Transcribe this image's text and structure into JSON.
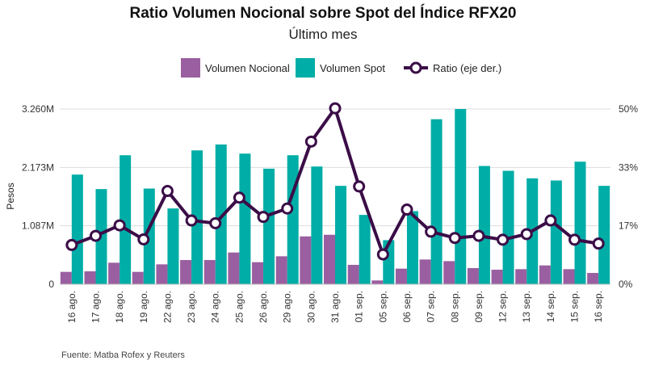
{
  "title": "Ratio Volumen Nocional sobre Spot del Índice RFX20",
  "subtitle": "Último mes",
  "source": "Fuente: Matba Rofex y Reuters",
  "colors": {
    "nocional": "#9a5fa0",
    "spot": "#00ada7",
    "ratio": "#3b0d47",
    "grid": "#dddddd"
  },
  "legend": {
    "nocional": "Volumen Nocional",
    "spot": "Volumen Spot",
    "ratio": "Ratio (eje der.)"
  },
  "chart_data": {
    "type": "bar",
    "title": "Ratio Volumen Nocional sobre Spot del Índice RFX20",
    "subtitle": "Último mes",
    "ylabel": "Pesos",
    "ylim": [
      0,
      3260
    ],
    "y_ticks": [
      "0",
      "1.087M",
      "2.173M",
      "3.260M"
    ],
    "y_tick_values": [
      0,
      1087,
      2173,
      3260
    ],
    "y2lim": [
      0,
      50
    ],
    "y2_ticks": [
      "0%",
      "17%",
      "33%",
      "50%"
    ],
    "y2_tick_values": [
      0,
      16.67,
      33.33,
      50
    ],
    "categories": [
      "16 ago.",
      "17 ago.",
      "18 ago.",
      "19 ago.",
      "22 ago.",
      "23 ago.",
      "24 ago.",
      "25 ago.",
      "26 ago.",
      "29 ago.",
      "30 ago.",
      "31 ago.",
      "01 sep.",
      "05 sep.",
      "06 sep.",
      "07 sep.",
      "08 sep.",
      "09 sep.",
      "12 sep.",
      "13 sep.",
      "14 sep.",
      "15 sep.",
      "16 sep."
    ],
    "series": [
      {
        "name": "Volumen Nocional",
        "axis": "left",
        "type": "bar",
        "values": [
          230,
          240,
          400,
          230,
          370,
          450,
          450,
          590,
          410,
          520,
          890,
          920,
          360,
          70,
          290,
          460,
          430,
          300,
          270,
          280,
          350,
          280,
          210
        ]
      },
      {
        "name": "Volumen Spot",
        "axis": "left",
        "type": "bar",
        "values": [
          2040,
          1770,
          2400,
          1780,
          1410,
          2490,
          2600,
          2430,
          2150,
          2400,
          2190,
          1830,
          1290,
          820,
          1360,
          3070,
          3260,
          2200,
          2110,
          1970,
          1930,
          2280,
          1830
        ]
      },
      {
        "name": "Ratio (eje der.)",
        "axis": "right",
        "type": "line",
        "values": [
          11.2,
          13.8,
          16.8,
          12.8,
          26.6,
          18.2,
          17.4,
          24.7,
          19.2,
          21.6,
          40.7,
          50.2,
          27.9,
          8.5,
          21.3,
          15.0,
          13.2,
          13.8,
          12.7,
          14.3,
          18.2,
          12.7,
          11.6
        ]
      }
    ],
    "legend_position": "top",
    "grid": true
  }
}
